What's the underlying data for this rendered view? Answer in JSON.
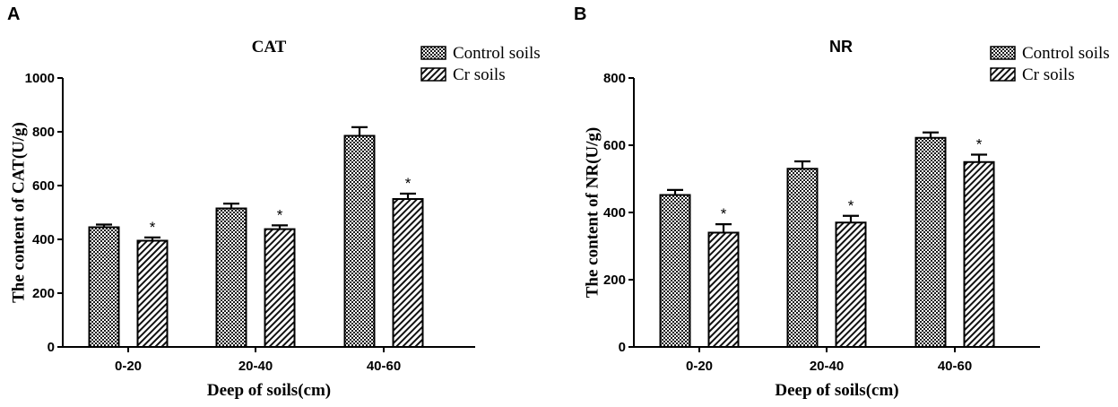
{
  "chart_data": [
    {
      "panel": "A",
      "type": "bar",
      "title": "CAT",
      "xlabel": "Deep of soils(cm)",
      "ylabel": "The content of CAT(U/g)",
      "categories": [
        "0-20",
        "20-40",
        "40-60"
      ],
      "ylim": [
        0,
        1000
      ],
      "yticks": [
        0,
        200,
        400,
        600,
        800,
        1000
      ],
      "legend_position": "top-right",
      "series": [
        {
          "name": "Control soils",
          "pattern": "crosshatch",
          "values": [
            445,
            515,
            785
          ],
          "errors": [
            10,
            18,
            32
          ],
          "significance": [
            "",
            "",
            ""
          ]
        },
        {
          "name": "Cr soils",
          "pattern": "diagonal",
          "values": [
            395,
            438,
            550
          ],
          "errors": [
            12,
            14,
            20
          ],
          "significance": [
            "*",
            "*",
            "*"
          ]
        }
      ]
    },
    {
      "panel": "B",
      "type": "bar",
      "title": "NR",
      "xlabel": "Deep of soils(cm)",
      "ylabel": "The content of NR(U/g)",
      "categories": [
        "0-20",
        "20-40",
        "40-60"
      ],
      "ylim": [
        0,
        800
      ],
      "yticks": [
        0,
        200,
        400,
        600,
        800
      ],
      "legend_position": "top-right",
      "series": [
        {
          "name": "Control soils",
          "pattern": "crosshatch",
          "values": [
            452,
            530,
            622
          ],
          "errors": [
            15,
            22,
            16
          ],
          "significance": [
            "",
            "",
            ""
          ]
        },
        {
          "name": "Cr soils",
          "pattern": "diagonal",
          "values": [
            340,
            370,
            550
          ],
          "errors": [
            25,
            20,
            22
          ],
          "significance": [
            "*",
            "*",
            "*"
          ]
        }
      ]
    }
  ]
}
